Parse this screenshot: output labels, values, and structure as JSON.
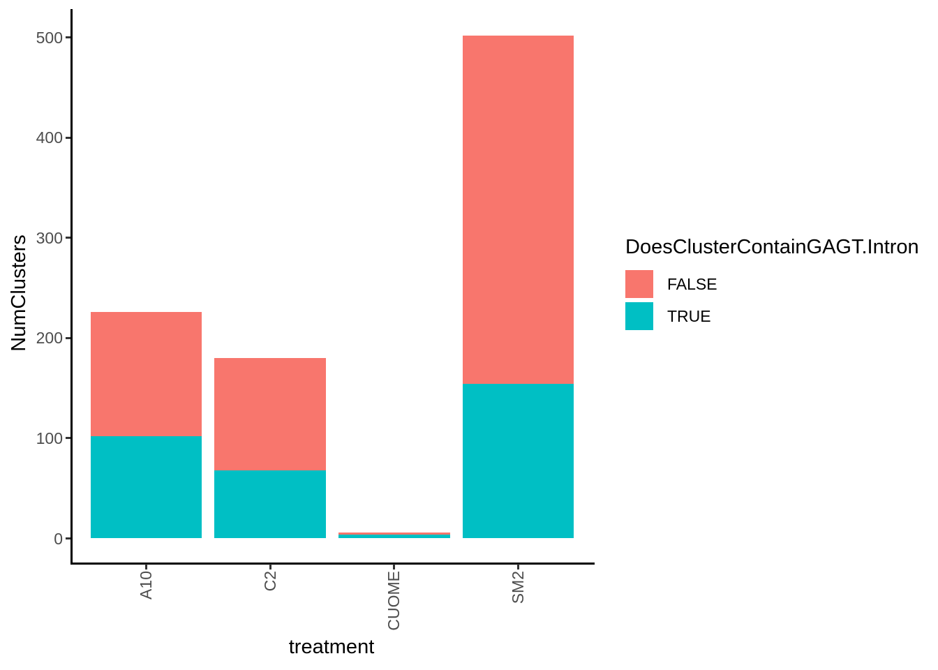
{
  "chart_data": {
    "type": "bar",
    "stacked": true,
    "orientation": "vertical",
    "title": "",
    "xlabel": "treatment",
    "ylabel": "NumClusters",
    "categories": [
      "A10",
      "C2",
      "CUOME",
      "SM2"
    ],
    "series": [
      {
        "name": "FALSE",
        "color": "#F8766D",
        "values": [
          124,
          112,
          2,
          348
        ]
      },
      {
        "name": "TRUE",
        "color": "#00BFC4",
        "values": [
          102,
          68,
          4,
          154
        ]
      }
    ],
    "stack_order_bottom_to_top": [
      "TRUE",
      "FALSE"
    ],
    "stack_totals": [
      226,
      180,
      6,
      502
    ],
    "yticks": [
      0,
      100,
      200,
      300,
      400,
      500
    ],
    "ylim": [
      0,
      527
    ],
    "grid": false,
    "legend": {
      "title": "DoesClusterContainGAGT.Intron",
      "position": "right",
      "entries": [
        "FALSE",
        "TRUE"
      ]
    },
    "colors": {
      "axis_line": "#000000",
      "tick_mark": "#333333",
      "tick_label": "#4D4D4D",
      "title_text": "#000000",
      "background": "#FFFFFF"
    }
  }
}
